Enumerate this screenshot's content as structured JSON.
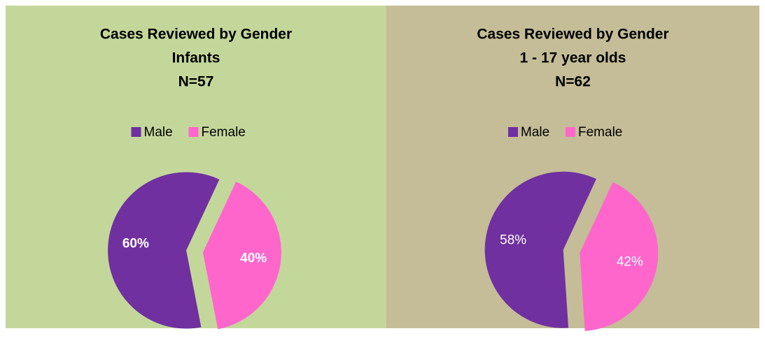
{
  "chart_data": [
    {
      "type": "pie",
      "title": [
        "Cases Reviewed by Gender",
        "Infants",
        "N=57"
      ],
      "categories": [
        "Male",
        "Female"
      ],
      "values": [
        60,
        40
      ],
      "value_labels": [
        "60%",
        "40%"
      ],
      "colors": [
        "#7030a0",
        "#ff66cc"
      ],
      "background": "#c4d79b",
      "value_label_bold": true,
      "legend": "top"
    },
    {
      "type": "pie",
      "title": [
        "Cases Reviewed by Gender",
        "1 - 17 year olds",
        "N=62"
      ],
      "categories": [
        "Male",
        "Female"
      ],
      "values": [
        58,
        42
      ],
      "value_labels": [
        "58%",
        "42%"
      ],
      "colors": [
        "#7030a0",
        "#ff66cc"
      ],
      "background": "#c4bd97",
      "value_label_bold": false,
      "legend": "top"
    }
  ]
}
